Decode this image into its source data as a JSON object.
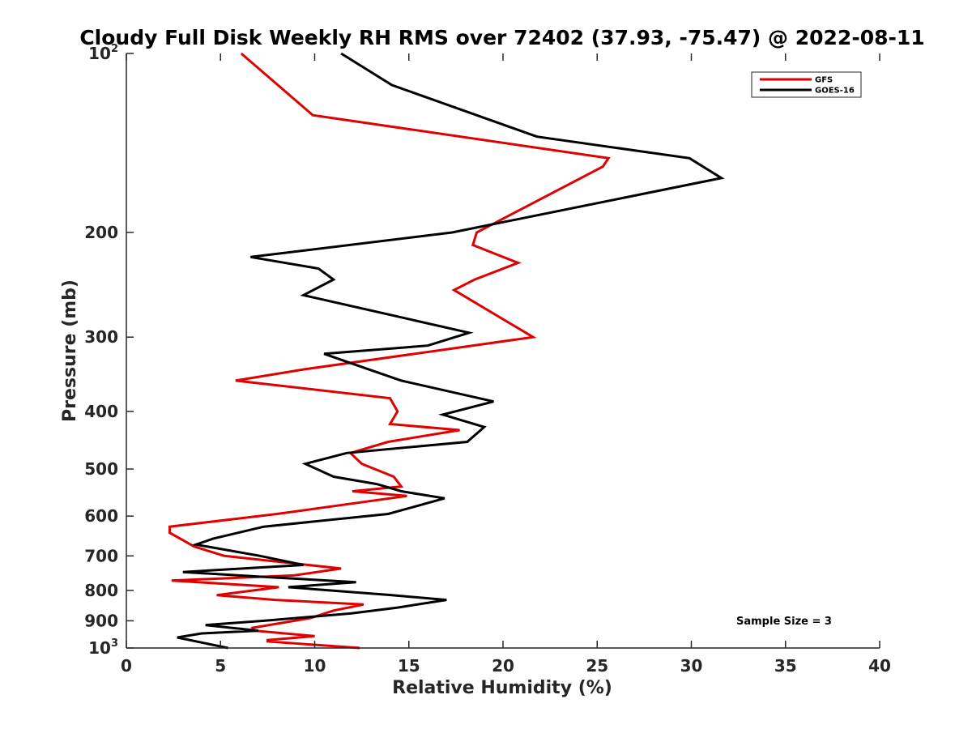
{
  "chart_data": {
    "type": "line",
    "title": "Cloudy Full Disk Weekly RH RMS over 72402 (37.93, -75.47) @ 2022-08-11",
    "xlabel": "Relative Humidity (%)",
    "ylabel": "Pressure (mb)",
    "xlim": [
      0,
      40
    ],
    "ylim": [
      100,
      1000
    ],
    "y_scale": "log",
    "y_reversed": true,
    "grid": false,
    "legend_position": "top-right",
    "x_ticks": [
      0,
      5,
      10,
      15,
      20,
      25,
      30,
      35,
      40
    ],
    "x_tick_labels": [
      "0",
      "5",
      "10",
      "15",
      "20",
      "25",
      "30",
      "35",
      "40"
    ],
    "y_ticks": [
      {
        "value": 100,
        "base": "10",
        "exp": "2"
      },
      {
        "value": 200,
        "label": "200"
      },
      {
        "value": 300,
        "label": "300"
      },
      {
        "value": 400,
        "label": "400"
      },
      {
        "value": 500,
        "label": "500"
      },
      {
        "value": 600,
        "label": "600"
      },
      {
        "value": 700,
        "label": "700"
      },
      {
        "value": 800,
        "label": "800"
      },
      {
        "value": 900,
        "label": "900"
      },
      {
        "value": 1000,
        "base": "10",
        "exp": "3"
      }
    ],
    "annotation": "Sample Size = 3",
    "series": [
      {
        "name": "GFS",
        "color": "#e00000",
        "points": [
          [
            6.1,
            100
          ],
          [
            9.9,
            127
          ],
          [
            25.6,
            150
          ],
          [
            25.3,
            155
          ],
          [
            18.6,
            200
          ],
          [
            18.4,
            210
          ],
          [
            20.8,
            225
          ],
          [
            18.5,
            240
          ],
          [
            17.4,
            250
          ],
          [
            21.6,
            300
          ],
          [
            9.4,
            340
          ],
          [
            5.8,
            355
          ],
          [
            14.0,
            380
          ],
          [
            14.4,
            400
          ],
          [
            14.0,
            420
          ],
          [
            17.7,
            430
          ],
          [
            13.9,
            450
          ],
          [
            11.9,
            470
          ],
          [
            12.5,
            490
          ],
          [
            14.2,
            515
          ],
          [
            14.6,
            535
          ],
          [
            12.0,
            545
          ],
          [
            14.9,
            555
          ],
          [
            8.0,
            595
          ],
          [
            2.3,
            625
          ],
          [
            2.3,
            640
          ],
          [
            3.6,
            675
          ],
          [
            5.2,
            700
          ],
          [
            11.4,
            735
          ],
          [
            8.9,
            755
          ],
          [
            2.4,
            770
          ],
          [
            8.1,
            790
          ],
          [
            4.8,
            815
          ],
          [
            7.9,
            830
          ],
          [
            12.6,
            845
          ],
          [
            11.0,
            865
          ],
          [
            9.8,
            890
          ],
          [
            6.7,
            925
          ],
          [
            6.8,
            935
          ],
          [
            10.0,
            955
          ],
          [
            7.5,
            970
          ],
          [
            7.5,
            975
          ],
          [
            12.4,
            1000
          ]
        ]
      },
      {
        "name": "GOES-16",
        "color": "#000000",
        "points": [
          [
            11.4,
            100
          ],
          [
            14.1,
            113
          ],
          [
            21.8,
            138
          ],
          [
            29.9,
            150
          ],
          [
            31.6,
            162
          ],
          [
            17.3,
            200
          ],
          [
            6.6,
            220
          ],
          [
            10.2,
            230
          ],
          [
            11.0,
            240
          ],
          [
            9.4,
            255
          ],
          [
            18.2,
            295
          ],
          [
            16.0,
            310
          ],
          [
            10.5,
            320
          ],
          [
            12.3,
            335
          ],
          [
            14.6,
            355
          ],
          [
            19.5,
            385
          ],
          [
            16.8,
            405
          ],
          [
            19.0,
            425
          ],
          [
            18.1,
            450
          ],
          [
            11.7,
            470
          ],
          [
            9.5,
            490
          ],
          [
            11.0,
            515
          ],
          [
            13.3,
            530
          ],
          [
            14.6,
            545
          ],
          [
            16.9,
            560
          ],
          [
            13.9,
            595
          ],
          [
            7.3,
            625
          ],
          [
            4.6,
            655
          ],
          [
            3.7,
            670
          ],
          [
            7.1,
            700
          ],
          [
            9.4,
            725
          ],
          [
            3.0,
            745
          ],
          [
            7.5,
            760
          ],
          [
            12.2,
            775
          ],
          [
            8.6,
            790
          ],
          [
            14.1,
            815
          ],
          [
            17.0,
            830
          ],
          [
            14.4,
            855
          ],
          [
            11.9,
            875
          ],
          [
            7.3,
            900
          ],
          [
            4.2,
            915
          ],
          [
            7.0,
            935
          ],
          [
            4.0,
            945
          ],
          [
            2.7,
            960
          ],
          [
            5.4,
            1000
          ]
        ]
      }
    ]
  }
}
